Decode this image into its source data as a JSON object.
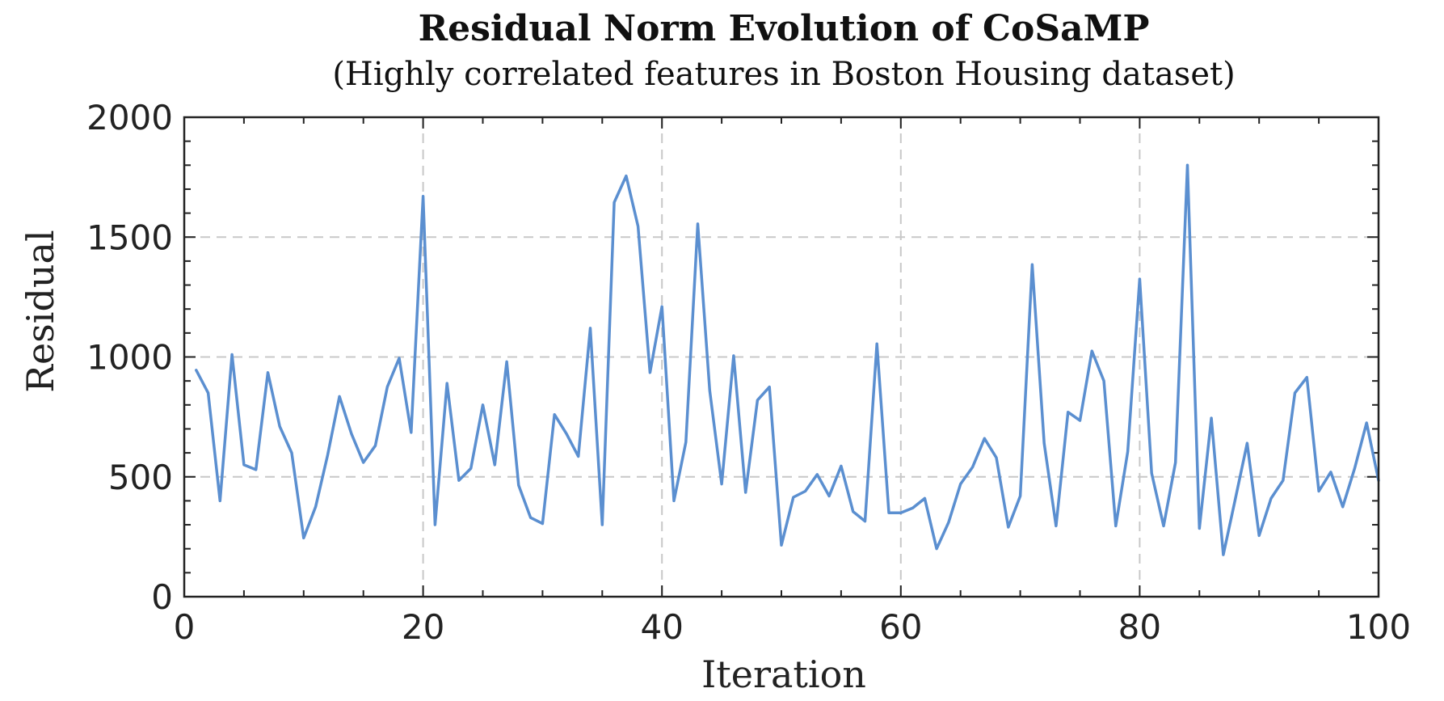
{
  "chart_data": {
    "type": "line",
    "title": "Residual Norm Evolution of CoSaMP",
    "subtitle": "(Highly correlated features in Boston Housing dataset)",
    "xlabel": "Iteration",
    "ylabel": "Residual",
    "xlim": [
      0,
      100
    ],
    "ylim": [
      0,
      2000
    ],
    "xticks": [
      "0",
      "20",
      "40",
      "60",
      "80",
      "100"
    ],
    "yticks": [
      "0",
      "500",
      "1000",
      "1500",
      "2000"
    ],
    "grid": "dashed, major ticks",
    "colors": {
      "series": "#5b8fd0",
      "frame": "#222222",
      "grid": "#c8c8c8"
    },
    "series": [
      {
        "x": [
          1,
          2,
          3,
          4,
          5,
          6,
          7,
          8,
          9,
          10,
          11,
          12,
          13,
          14,
          15,
          16,
          17,
          18,
          19,
          20,
          21,
          22,
          23,
          24,
          25,
          26,
          27,
          28,
          29,
          30,
          31,
          32,
          33,
          34,
          35,
          36,
          37,
          38,
          39,
          40,
          41,
          42,
          43,
          44,
          45,
          46,
          47,
          48,
          49,
          50,
          51,
          52,
          53,
          54,
          55,
          56,
          57,
          58,
          59,
          60,
          61,
          62,
          63,
          64,
          65,
          66,
          67,
          68,
          69,
          70,
          71,
          72,
          73,
          74,
          75,
          76,
          77,
          78,
          79,
          80,
          81,
          82,
          83,
          84,
          85,
          86,
          87,
          88,
          89,
          90,
          91,
          92,
          93,
          94,
          95,
          96,
          97,
          98,
          99,
          100
        ],
        "y": [
          945,
          850,
          400,
          1010,
          550,
          530,
          935,
          710,
          600,
          245,
          375,
          590,
          835,
          680,
          560,
          630,
          875,
          995,
          685,
          1670,
          300,
          890,
          485,
          535,
          800,
          550,
          980,
          465,
          330,
          305,
          760,
          680,
          585,
          1120,
          300,
          1645,
          1755,
          1545,
          935,
          1210,
          400,
          645,
          1555,
          860,
          470,
          1005,
          435,
          820,
          875,
          215,
          415,
          440,
          510,
          420,
          545,
          355,
          315,
          1055,
          350,
          350,
          370,
          410,
          200,
          310,
          470,
          540,
          660,
          580,
          290,
          420,
          1385,
          640,
          295,
          770,
          735,
          1025,
          900,
          295,
          605,
          1325,
          515,
          295,
          560,
          1800,
          285,
          745,
          175,
          405,
          640,
          255,
          410,
          485,
          850,
          915,
          440,
          520,
          375,
          535,
          725,
          485
        ]
      }
    ]
  }
}
